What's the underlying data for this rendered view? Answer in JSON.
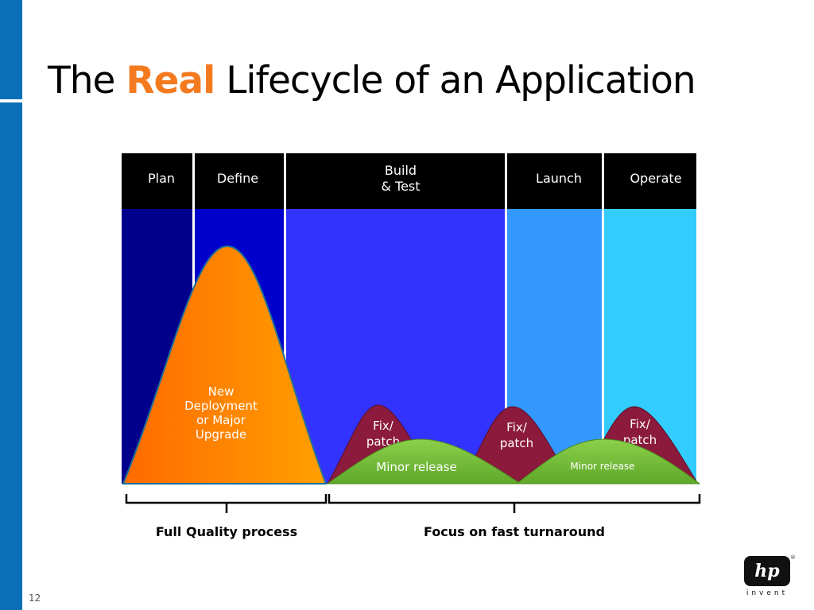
{
  "slide": {
    "title_before": "The ",
    "title_accent": "Real",
    "title_after": " Lifecycle of an Application",
    "page_number": "12"
  },
  "phases": [
    {
      "label": "Plan",
      "color": "#00008c"
    },
    {
      "label": "Define",
      "color": "#0000cc"
    },
    {
      "label": "Build\n& Test",
      "color": "#3333ff"
    },
    {
      "label": "Launch",
      "color": "#3399ff"
    },
    {
      "label": "Operate",
      "color": "#33ccff"
    }
  ],
  "curves": {
    "major": "New\nDeployment\nor Major\nUpgrade",
    "fix1": "Fix/\npatch",
    "fix2": "Fix/\npatch",
    "fix3": "Fix/\npatch",
    "minor1": "Minor release",
    "minor2": "Minor release"
  },
  "brackets": {
    "left_label": "Full Quality process",
    "right_label": "Focus on fast turnaround"
  },
  "logo": {
    "mark": "hp",
    "tagline": "invent"
  },
  "colors": {
    "accent": "#f47a20",
    "side_bar": "#0a6fb6",
    "fix_fill": "#8b1a3c",
    "minor_fill": "#7dc242",
    "major_fill": "#ff8a00"
  }
}
